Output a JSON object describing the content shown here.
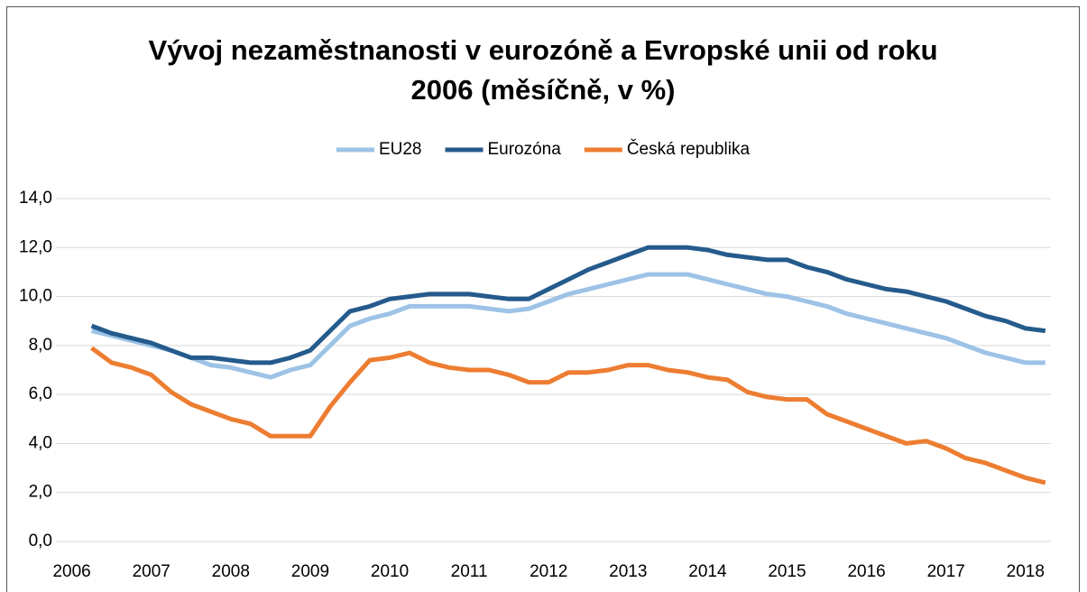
{
  "chart_data": {
    "type": "line",
    "title": "Vývoj nezaměstnanosti v eurozóně a Evropské unii od roku 2006 (měsíčně, v %)",
    "x": [
      2006.25,
      2006.5,
      2006.75,
      2007,
      2007.25,
      2007.5,
      2007.75,
      2008,
      2008.25,
      2008.5,
      2008.75,
      2009,
      2009.25,
      2009.5,
      2009.75,
      2010,
      2010.25,
      2010.5,
      2010.75,
      2011,
      2011.25,
      2011.5,
      2011.75,
      2012,
      2012.25,
      2012.5,
      2012.75,
      2013,
      2013.25,
      2013.5,
      2013.75,
      2014,
      2014.25,
      2014.5,
      2014.75,
      2015,
      2015.25,
      2015.5,
      2015.75,
      2016,
      2016.25,
      2016.5,
      2016.75,
      2017,
      2017.25,
      2017.5,
      2017.75,
      2018,
      2018.25
    ],
    "series": [
      {
        "name": "EU28",
        "color": "#9dc3e6",
        "values": [
          8.6,
          8.4,
          8.2,
          8.0,
          7.8,
          7.5,
          7.2,
          7.1,
          6.9,
          6.7,
          7.0,
          7.2,
          8.0,
          8.8,
          9.1,
          9.3,
          9.6,
          9.6,
          9.6,
          9.6,
          9.5,
          9.4,
          9.5,
          9.8,
          10.1,
          10.3,
          10.5,
          10.7,
          10.9,
          10.9,
          10.9,
          10.7,
          10.5,
          10.3,
          10.1,
          10.0,
          9.8,
          9.6,
          9.3,
          9.1,
          8.9,
          8.7,
          8.5,
          8.3,
          8.0,
          7.7,
          7.5,
          7.3,
          7.3
        ]
      },
      {
        "name": "Eurozóna",
        "color": "#255b8c",
        "values": [
          8.8,
          8.5,
          8.3,
          8.1,
          7.8,
          7.5,
          7.5,
          7.4,
          7.3,
          7.3,
          7.5,
          7.8,
          8.6,
          9.4,
          9.6,
          9.9,
          10.0,
          10.1,
          10.1,
          10.1,
          10.0,
          9.9,
          9.9,
          10.3,
          10.7,
          11.1,
          11.4,
          11.7,
          12.0,
          12.0,
          12.0,
          11.9,
          11.7,
          11.6,
          11.5,
          11.5,
          11.2,
          11.0,
          10.7,
          10.5,
          10.3,
          10.2,
          10.0,
          9.8,
          9.5,
          9.2,
          9.0,
          8.7,
          8.6
        ]
      },
      {
        "name": "Česká republika",
        "color": "#ed7d31",
        "values": [
          7.9,
          7.3,
          7.1,
          6.8,
          6.1,
          5.6,
          5.3,
          5.0,
          4.8,
          4.3,
          4.3,
          4.3,
          5.5,
          6.5,
          7.4,
          7.5,
          7.7,
          7.3,
          7.1,
          7.0,
          7.0,
          6.8,
          6.5,
          6.5,
          6.9,
          6.9,
          7.0,
          7.2,
          7.2,
          7.0,
          6.9,
          6.7,
          6.6,
          6.1,
          5.9,
          5.8,
          5.8,
          5.2,
          4.9,
          4.6,
          4.3,
          4.0,
          4.1,
          3.8,
          3.4,
          3.2,
          2.9,
          2.6,
          2.4
        ]
      }
    ],
    "xlim": [
      2005.8,
      2018.32
    ],
    "xticks": [
      2006,
      2007,
      2008,
      2009,
      2010,
      2011,
      2012,
      2013,
      2014,
      2015,
      2016,
      2017,
      2018
    ],
    "ylim": [
      0,
      14
    ],
    "yticks": [
      {
        "value": 0,
        "label": "0,0"
      },
      {
        "value": 2,
        "label": "2,0"
      },
      {
        "value": 4,
        "label": "4,0"
      },
      {
        "value": 6,
        "label": "6,0"
      },
      {
        "value": 8,
        "label": "8,0"
      },
      {
        "value": 10,
        "label": "10,0"
      },
      {
        "value": 12,
        "label": "12,0"
      },
      {
        "value": 14,
        "label": "14,0"
      }
    ],
    "grid": true,
    "legend": "top"
  }
}
